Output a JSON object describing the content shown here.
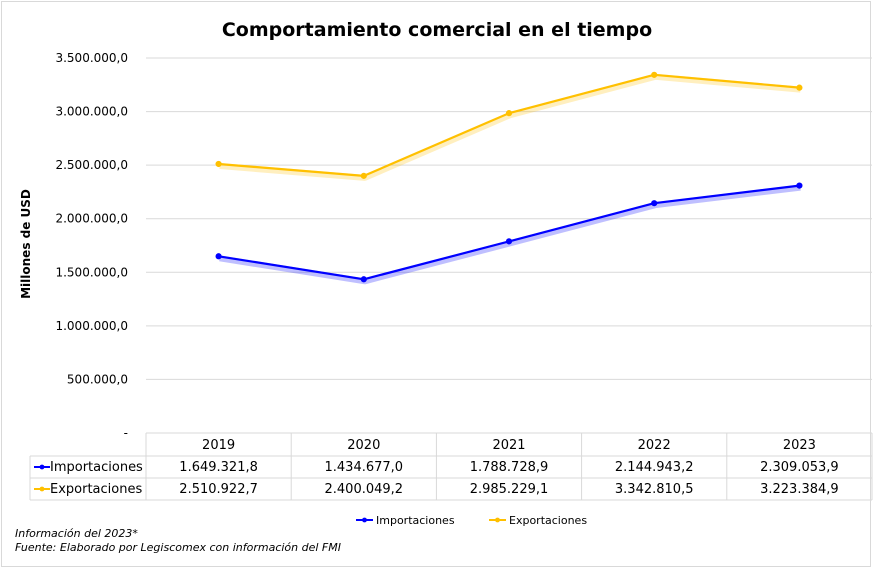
{
  "chart_data": {
    "type": "line",
    "title": "Comportamiento comercial en el tiempo",
    "ylabel": "Millones de USD",
    "categories": [
      "2019",
      "2020",
      "2021",
      "2022",
      "2023"
    ],
    "series": [
      {
        "name": "Importaciones",
        "values": [
          1649321.8,
          1434677.0,
          1788728.9,
          2144943.2,
          2309053.9
        ],
        "labels": [
          "1.649.321,8",
          "1.434.677,0",
          "1.788.728,9",
          "2.144.943,2",
          "2.309.053,9"
        ],
        "color": "#0000ff"
      },
      {
        "name": "Exportaciones",
        "values": [
          2510922.7,
          2400049.2,
          2985229.1,
          3342810.5,
          3223384.9
        ],
        "labels": [
          "2.510.922,7",
          "2.400.049,2",
          "2.985.229,1",
          "3.342.810,5",
          "3.223.384,9"
        ],
        "color": "#ffc000"
      }
    ],
    "ylim": [
      0,
      3500000
    ],
    "yticks": [
      {
        "value": 3500000,
        "label": "3.500.000,0"
      },
      {
        "value": 3000000,
        "label": "3.000.000,0"
      },
      {
        "value": 2500000,
        "label": "2.500.000,0"
      },
      {
        "value": 2000000,
        "label": "2.000.000,0"
      },
      {
        "value": 1500000,
        "label": "1.500.000,0"
      },
      {
        "value": 1000000,
        "label": "1.000.000,0"
      },
      {
        "value": 500000,
        "label": "500.000,0"
      },
      {
        "value": 0,
        "label": "-"
      }
    ],
    "grid": true,
    "legend": "bottom",
    "data_table": true
  },
  "notes": {
    "line1": "Información del 2023*",
    "line2": "Fuente: Elaborado por Legiscomex con información del FMI"
  }
}
